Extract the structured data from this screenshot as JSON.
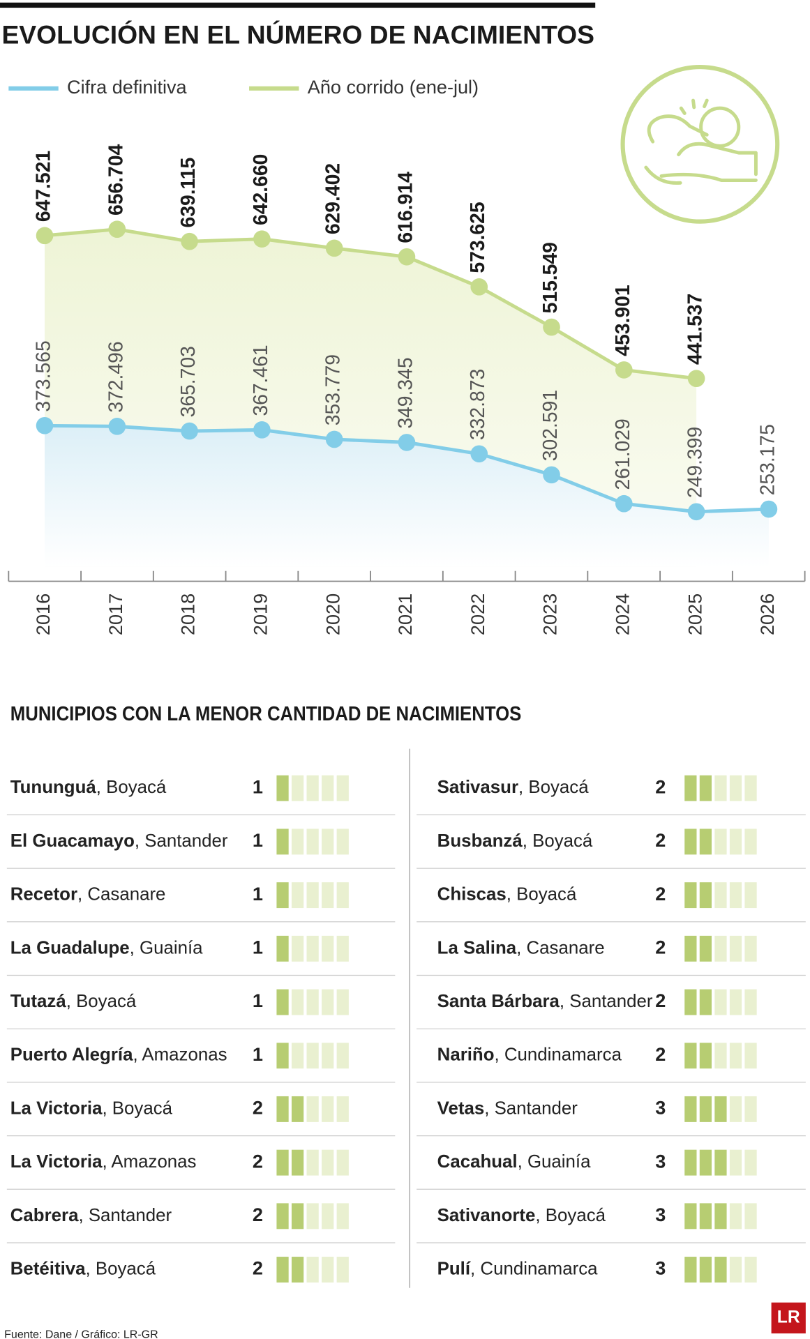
{
  "chart_data": {
    "type": "line",
    "title": "EVOLUCIÓN EN EL NÚMERO DE NACIMIENTOS",
    "categories": [
      "2016",
      "2017",
      "2018",
      "2019",
      "2020",
      "2021",
      "2022",
      "2023",
      "2024",
      "2025",
      "2026"
    ],
    "series": [
      {
        "name": "Cifra definitiva",
        "color": "#82cde8",
        "values": [
          373565,
          372496,
          365703,
          367461,
          353779,
          349345,
          332873,
          302591,
          261029,
          249399,
          253175
        ],
        "value_labels": [
          "373.565",
          "372.496",
          "365.703",
          "367.461",
          "353.779",
          "349.345",
          "332.873",
          "302.591",
          "261.029",
          "249.399",
          "253.175"
        ]
      },
      {
        "name": "Año corrido (ene-jul)",
        "color": "#c6db8c",
        "values": [
          647521,
          656704,
          639115,
          642660,
          629402,
          616914,
          573625,
          515549,
          453901,
          441537,
          null
        ],
        "value_labels": [
          "647.521",
          "656.704",
          "639.115",
          "642.660",
          "629.402",
          "616.914",
          "573.625",
          "515.549",
          "453.901",
          "441.537",
          null
        ]
      }
    ]
  },
  "table": {
    "title": "MUNICIPIOS CON LA MENOR CANTIDAD DE NACIMIENTOS",
    "rows": [
      {
        "name": "Tununguá",
        "place": ", Boyacá",
        "count": 1
      },
      {
        "name": "El Guacamayo",
        "place": ", Santander",
        "count": 1
      },
      {
        "name": "Recetor",
        "place": ", Casanare",
        "count": 1
      },
      {
        "name": "La Guadalupe",
        "place": ", Guainía",
        "count": 1
      },
      {
        "name": "Tutazá",
        "place": ", Boyacá",
        "count": 1
      },
      {
        "name": "Puerto Alegría",
        "place": ", Amazonas",
        "count": 1
      },
      {
        "name": "La Victoria",
        "place": ", Boyacá",
        "count": 2
      },
      {
        "name": "La Victoria",
        "place": ", Amazonas",
        "count": 2
      },
      {
        "name": "Cabrera",
        "place": ", Santander",
        "count": 2
      },
      {
        "name": "Betéitiva",
        "place": ", Boyacá",
        "count": 2
      },
      {
        "name": "Sativasur",
        "place": ", Boyacá",
        "count": 2
      },
      {
        "name": "Busbanzá",
        "place": ", Boyacá",
        "count": 2
      },
      {
        "name": "Chiscas",
        "place": ", Boyacá",
        "count": 2
      },
      {
        "name": "La Salina",
        "place": ", Casanare",
        "count": 2
      },
      {
        "name": "Santa Bárbara",
        "place": ", Santander",
        "count": 2
      },
      {
        "name": "Nariño",
        "place": ", Cundinamarca",
        "count": 2
      },
      {
        "name": "Vetas",
        "place": ", Santander",
        "count": 3
      },
      {
        "name": "Cacahual",
        "place": ", Guainía",
        "count": 3
      },
      {
        "name": "Sativanorte",
        "place": ", Boyacá",
        "count": 3
      },
      {
        "name": "Pulí",
        "place": ", Cundinamarca",
        "count": 3
      }
    ]
  },
  "footer": {
    "source": "Fuente: Dane / Gráfico: LR-GR",
    "logo": "LR"
  }
}
